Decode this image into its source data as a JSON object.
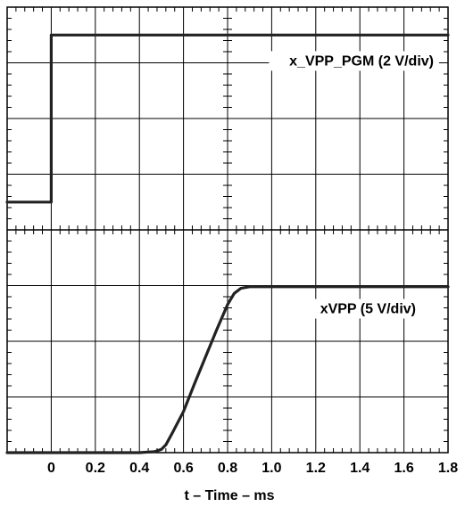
{
  "chart_data": {
    "type": "line",
    "xlabel": "t – Time – ms",
    "xticks": [
      "0",
      "0.2",
      "0.4",
      "0.6",
      "0.8",
      "1.0",
      "1.2",
      "1.4",
      "1.6",
      "1.8"
    ],
    "x_range_ms": [
      -0.2,
      1.8
    ],
    "grid": true,
    "panels": [
      {
        "label": "x_VPP_PGM (2 V/div)",
        "y_divisions": 4,
        "series": [
          {
            "name": "x_VPP_PGM",
            "x_ms": [
              -0.2,
              0.0,
              0.0,
              1.8
            ],
            "y_div": [
              0.5,
              0.5,
              3.5,
              3.5
            ]
          }
        ]
      },
      {
        "label": "xVPP (5 V/div)",
        "y_divisions": 4,
        "series": [
          {
            "name": "xVPP",
            "x_ms": [
              -0.2,
              0.4,
              0.47,
              0.5,
              0.52,
              0.55,
              0.6,
              0.65,
              0.7,
              0.75,
              0.8,
              0.83,
              0.86,
              0.9,
              1.0,
              1.8
            ],
            "y_div": [
              0.0,
              0.0,
              0.02,
              0.06,
              0.14,
              0.36,
              0.74,
              1.24,
              1.72,
              2.2,
              2.66,
              2.86,
              2.95,
              2.98,
              2.98,
              2.98
            ]
          }
        ]
      }
    ]
  }
}
